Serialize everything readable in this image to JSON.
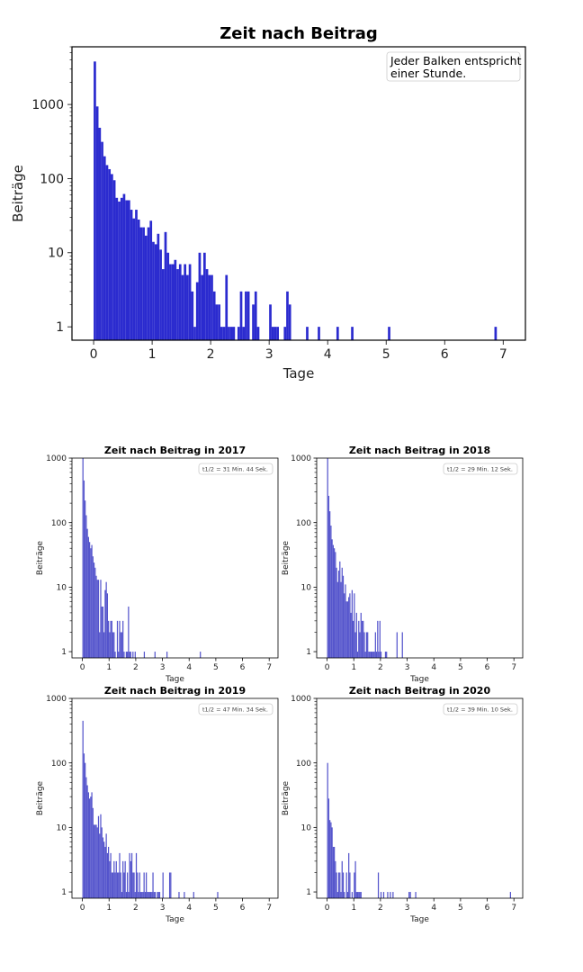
{
  "chart_data": [
    {
      "type": "bar",
      "title": "Zeit nach Beitrag",
      "xlabel": "Tage",
      "ylabel": "Beiträge",
      "annotation": [
        "Jeder Balken entspricht",
        "einer Stunde."
      ],
      "bin_width_days": 0.041667,
      "yscale": "log",
      "xlim": [
        -0.37,
        7.38
      ],
      "ylim": [
        0.66,
        6000
      ],
      "xticks": [
        "0",
        "1",
        "2",
        "3",
        "4",
        "5",
        "6",
        "7"
      ],
      "yticks": [
        "1",
        "10",
        "100",
        "1000"
      ],
      "color": "#2b2bcf",
      "counts": [
        3800,
        940,
        485,
        313,
        200,
        152,
        134,
        115,
        95,
        55,
        49,
        55,
        62,
        51,
        51,
        38,
        29,
        38,
        28,
        22,
        22,
        17,
        22,
        27,
        14,
        13,
        18,
        11,
        6,
        19,
        10,
        7,
        7,
        8,
        6,
        7,
        5,
        7,
        5,
        7,
        3,
        1,
        4,
        10,
        5,
        10,
        6,
        5,
        5,
        3,
        2,
        2,
        1,
        1,
        5,
        1,
        1,
        1,
        0,
        1,
        3,
        1,
        3,
        3,
        0,
        2,
        3,
        1,
        0,
        0,
        0,
        0,
        2,
        1,
        1,
        1,
        0,
        0,
        1,
        3,
        2
      ],
      "tail": [
        {
          "day": 3.63,
          "count": 1
        },
        {
          "day": 3.83,
          "count": 1
        },
        {
          "day": 4.15,
          "count": 1
        },
        {
          "day": 4.4,
          "count": 1
        },
        {
          "day": 5.03,
          "count": 1
        },
        {
          "day": 6.85,
          "count": 1
        }
      ]
    },
    {
      "type": "bar",
      "title": "Zeit nach Beitrag in 2017",
      "xlabel": "Tage",
      "ylabel": "Beiträge",
      "annotation": [
        "t1/2 = 31 Min. 44 Sek."
      ],
      "yscale": "log",
      "xlim": [
        -0.39,
        7.33
      ],
      "ylim": [
        0.8,
        1000
      ],
      "xticks": [
        "0",
        "1",
        "2",
        "3",
        "4",
        "5",
        "6",
        "7"
      ],
      "yticks": [
        "1",
        "10",
        "100",
        "1000"
      ],
      "color": "#5555cc",
      "counts": [
        1000,
        450,
        220,
        130,
        80,
        60,
        50,
        40,
        45,
        30,
        24,
        20,
        15,
        13,
        13,
        2,
        13,
        5,
        5,
        2,
        9,
        12,
        8,
        3,
        2,
        3,
        3,
        2,
        2,
        1,
        0,
        3,
        1,
        3,
        2,
        2,
        3,
        1,
        0,
        1,
        1,
        5,
        1,
        1,
        0,
        1,
        0,
        1,
        0
      ],
      "tail": [
        {
          "day": 2.3,
          "count": 1
        },
        {
          "day": 2.7,
          "count": 1
        },
        {
          "day": 3.15,
          "count": 1
        },
        {
          "day": 4.4,
          "count": 1
        }
      ]
    },
    {
      "type": "bar",
      "title": "Zeit nach Beitrag in 2018",
      "xlabel": "Tage",
      "ylabel": "Beiträge",
      "annotation": [
        "t1/2 = 29 Min. 12 Sek."
      ],
      "yscale": "log",
      "xlim": [
        -0.39,
        7.33
      ],
      "ylim": [
        0.8,
        1000
      ],
      "xticks": [
        "0",
        "1",
        "2",
        "3",
        "4",
        "5",
        "6",
        "7"
      ],
      "yticks": [
        "1",
        "10",
        "100",
        "1000"
      ],
      "color": "#5555cc",
      "counts": [
        1000,
        260,
        150,
        90,
        55,
        45,
        40,
        35,
        20,
        12,
        18,
        25,
        12,
        20,
        15,
        8,
        11,
        6,
        6,
        7,
        8,
        4,
        9,
        3,
        8,
        2,
        4,
        1,
        3,
        2,
        4,
        3,
        3,
        2,
        1,
        2,
        2,
        1,
        1,
        1,
        1,
        1,
        1,
        2,
        1,
        3,
        1,
        3,
        1,
        0,
        0,
        0,
        1,
        1
      ],
      "tail": [
        {
          "day": 2.6,
          "count": 2
        },
        {
          "day": 2.8,
          "count": 2
        }
      ]
    },
    {
      "type": "bar",
      "title": "Zeit nach Beitrag in 2019",
      "xlabel": "Tage",
      "ylabel": "Beiträge",
      "annotation": [
        "t1/2 = 47 Min. 34 Sek."
      ],
      "yscale": "log",
      "xlim": [
        -0.39,
        7.33
      ],
      "ylim": [
        0.8,
        1000
      ],
      "xticks": [
        "0",
        "1",
        "2",
        "3",
        "4",
        "5",
        "6",
        "7"
      ],
      "yticks": [
        "1",
        "10",
        "100",
        "1000"
      ],
      "color": "#5555cc",
      "counts": [
        450,
        140,
        100,
        60,
        45,
        35,
        28,
        30,
        35,
        20,
        11,
        11,
        11,
        10,
        15,
        8,
        16,
        10,
        7,
        6,
        5,
        8,
        4,
        5,
        3,
        4,
        2,
        2,
        3,
        2,
        3,
        2,
        2,
        4,
        2,
        1,
        3,
        2,
        3,
        1,
        2,
        1,
        4,
        3,
        4,
        2,
        2,
        1,
        4,
        2,
        1,
        2,
        1,
        1,
        1,
        2,
        1,
        2,
        1,
        1,
        1,
        1,
        1,
        2,
        1,
        1,
        0,
        1,
        1,
        1,
        0,
        0,
        2,
        0,
        0,
        0,
        0,
        0,
        2,
        2
      ],
      "tail": [
        {
          "day": 3.6,
          "count": 1
        },
        {
          "day": 3.8,
          "count": 1
        },
        {
          "day": 4.15,
          "count": 1
        },
        {
          "day": 5.05,
          "count": 1
        }
      ]
    },
    {
      "type": "bar",
      "title": "Zeit nach Beitrag in 2020",
      "xlabel": "Tage",
      "ylabel": "Beiträge",
      "annotation": [
        "t1/2 = 39 Min. 10 Sek."
      ],
      "yscale": "log",
      "xlim": [
        -0.39,
        7.33
      ],
      "ylim": [
        0.8,
        1000
      ],
      "xticks": [
        "0",
        "1",
        "2",
        "3",
        "4",
        "5",
        "6",
        "7"
      ],
      "yticks": [
        "1",
        "10",
        "100",
        "1000"
      ],
      "color": "#5555cc",
      "counts": [
        100,
        28,
        13,
        12,
        10,
        5,
        5,
        3,
        2,
        1,
        2,
        2,
        1,
        3,
        2,
        1,
        0,
        2,
        1,
        4,
        2,
        0,
        1,
        0,
        2,
        3,
        1,
        1,
        1,
        1,
        1,
        0,
        0,
        0
      ],
      "tail": [
        {
          "day": 1.9,
          "count": 2
        },
        {
          "day": 2.0,
          "count": 1
        },
        {
          "day": 2.1,
          "count": 1
        },
        {
          "day": 2.25,
          "count": 1
        },
        {
          "day": 2.35,
          "count": 1
        },
        {
          "day": 2.45,
          "count": 1
        },
        {
          "day": 3.05,
          "count": 1
        },
        {
          "day": 3.1,
          "count": 1
        },
        {
          "day": 3.3,
          "count": 1
        },
        {
          "day": 6.85,
          "count": 1
        }
      ]
    }
  ]
}
